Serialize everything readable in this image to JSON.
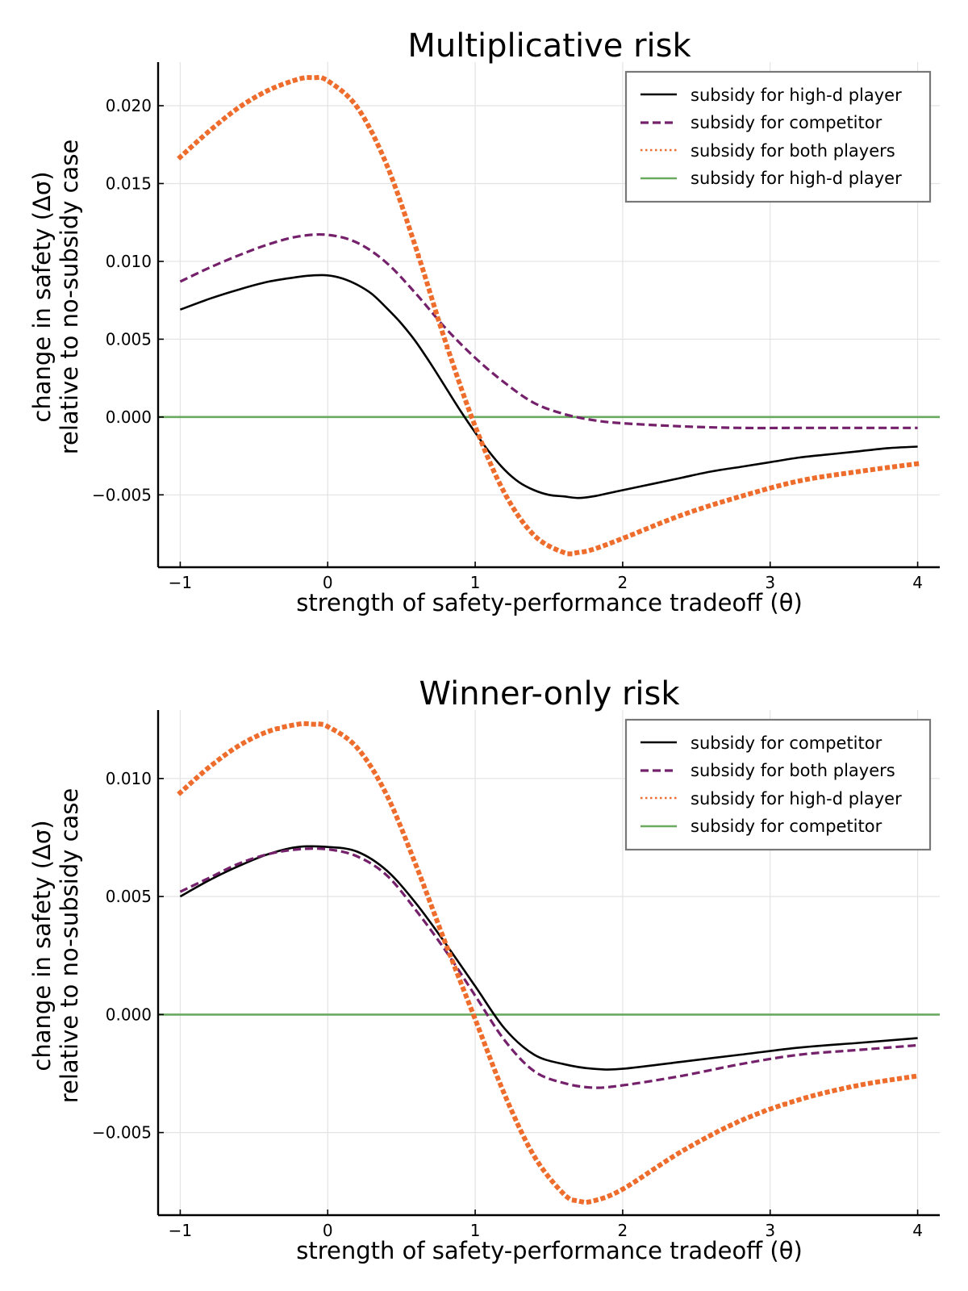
{
  "chart_data": [
    {
      "type": "line",
      "title": "Multiplicative risk",
      "xlabel": "strength of safety-performance tradeoff (θ)",
      "ylabel_line1": "change in safety (Δσ)",
      "ylabel_line2": "relative to no-subsidy case",
      "xlim": [
        -1.15,
        4.15
      ],
      "ylim": [
        -0.00965,
        0.0228
      ],
      "x_ticks": [
        -1,
        0,
        1,
        2,
        3,
        4
      ],
      "x_tick_labels": [
        "−1",
        "0",
        "1",
        "2",
        "3",
        "4"
      ],
      "y_ticks": [
        -0.005,
        0.0,
        0.005,
        0.01,
        0.015,
        0.02
      ],
      "y_tick_labels": [
        "−0.005",
        "0.000",
        "0.005",
        "0.010",
        "0.015",
        "0.020"
      ],
      "grid": true,
      "legend_position": "top-right",
      "series": [
        {
          "name": "subsidy for high-d player",
          "style": "solid",
          "color": "#000000",
          "x": [
            -1,
            -0.8,
            -0.6,
            -0.4,
            -0.2,
            -0.1,
            0,
            0.1,
            0.2,
            0.3,
            0.4,
            0.5,
            0.6,
            0.7,
            0.8,
            0.9,
            1.0,
            1.1,
            1.2,
            1.3,
            1.4,
            1.5,
            1.6,
            1.7,
            1.8,
            1.9,
            2.0,
            2.2,
            2.4,
            2.6,
            2.8,
            3.0,
            3.2,
            3.4,
            3.6,
            3.8,
            4.0
          ],
          "y": [
            0.0069,
            0.0076,
            0.0082,
            0.0087,
            0.009,
            0.0091,
            0.0091,
            0.0089,
            0.0085,
            0.0079,
            0.007,
            0.006,
            0.0048,
            0.0034,
            0.0019,
            0.0004,
            -0.001,
            -0.0023,
            -0.0034,
            -0.0042,
            -0.0047,
            -0.005,
            -0.0051,
            -0.0052,
            -0.0051,
            -0.0049,
            -0.0047,
            -0.0043,
            -0.0039,
            -0.0035,
            -0.0032,
            -0.0029,
            -0.0026,
            -0.0024,
            -0.0022,
            -0.002,
            -0.0019
          ]
        },
        {
          "name": "subsidy for competitor",
          "style": "dashed",
          "color": "#74206b",
          "x": [
            -1,
            -0.8,
            -0.6,
            -0.4,
            -0.2,
            0,
            0.2,
            0.4,
            0.6,
            0.8,
            1.0,
            1.2,
            1.4,
            1.6,
            1.8,
            2.0,
            2.4,
            2.8,
            3.2,
            3.6,
            4.0
          ],
          "y": [
            0.0087,
            0.0096,
            0.0104,
            0.0111,
            0.0116,
            0.0117,
            0.0112,
            0.0099,
            0.0079,
            0.0057,
            0.0038,
            0.0022,
            0.0009,
            0.0002,
            -0.0002,
            -0.0004,
            -0.0006,
            -0.0007,
            -0.0007,
            -0.0007,
            -0.0007
          ]
        },
        {
          "name": "subsidy for both players",
          "style": "dotted",
          "color": "#ee6c2c",
          "x": [
            -1,
            -0.8,
            -0.6,
            -0.4,
            -0.2,
            -0.1,
            0,
            0.2,
            0.4,
            0.6,
            0.8,
            1.0,
            1.2,
            1.4,
            1.6,
            1.7,
            1.8,
            2.0,
            2.4,
            2.8,
            3.2,
            3.6,
            4.0
          ],
          "y": [
            0.0167,
            0.0184,
            0.0199,
            0.021,
            0.0217,
            0.0218,
            0.0216,
            0.0199,
            0.0162,
            0.0108,
            0.0048,
            -0.0006,
            -0.0049,
            -0.0076,
            -0.0087,
            -0.0087,
            -0.0085,
            -0.0078,
            -0.0063,
            -0.0051,
            -0.0041,
            -0.0035,
            -0.003
          ]
        },
        {
          "name": "subsidy for high-d player",
          "style": "solid-green",
          "color": "#6aaa60",
          "x": [
            -1.15,
            4.15
          ],
          "y": [
            0.0,
            0.0
          ]
        }
      ]
    },
    {
      "type": "line",
      "title": "Winner-only risk",
      "xlabel": "strength of safety-performance tradeoff (θ)",
      "ylabel_line1": "change in safety (Δσ)",
      "ylabel_line2": "relative to no-subsidy case",
      "xlim": [
        -1.15,
        4.15
      ],
      "ylim": [
        -0.0085,
        0.0129
      ],
      "x_ticks": [
        -1,
        0,
        1,
        2,
        3,
        4
      ],
      "x_tick_labels": [
        "−1",
        "0",
        "1",
        "2",
        "3",
        "4"
      ],
      "y_ticks": [
        -0.005,
        0.0,
        0.005,
        0.01
      ],
      "y_tick_labels": [
        "−0.005",
        "0.000",
        "0.005",
        "0.010"
      ],
      "grid": true,
      "legend_position": "top-right",
      "series": [
        {
          "name": "subsidy for competitor",
          "style": "solid",
          "color": "#000000",
          "x": [
            -1,
            -0.8,
            -0.6,
            -0.4,
            -0.2,
            0,
            0.2,
            0.4,
            0.6,
            0.8,
            1.0,
            1.2,
            1.4,
            1.6,
            1.8,
            2.0,
            2.4,
            2.8,
            3.2,
            3.6,
            4.0
          ],
          "y": [
            0.005,
            0.0057,
            0.0063,
            0.0068,
            0.0071,
            0.0071,
            0.0069,
            0.0061,
            0.0047,
            0.003,
            0.0012,
            -0.0006,
            -0.0017,
            -0.0021,
            -0.0023,
            -0.0023,
            -0.002,
            -0.0017,
            -0.0014,
            -0.0012,
            -0.001
          ]
        },
        {
          "name": "subsidy for both players",
          "style": "dashed",
          "color": "#74206b",
          "x": [
            -1,
            -0.8,
            -0.6,
            -0.4,
            -0.2,
            0,
            0.2,
            0.4,
            0.6,
            0.8,
            1.0,
            1.2,
            1.4,
            1.6,
            1.8,
            2.0,
            2.4,
            2.8,
            3.2,
            3.6,
            4.0
          ],
          "y": [
            0.0052,
            0.0058,
            0.0064,
            0.0068,
            0.007,
            0.007,
            0.0067,
            0.0059,
            0.0044,
            0.0027,
            0.0008,
            -0.0011,
            -0.0024,
            -0.0029,
            -0.0031,
            -0.003,
            -0.0026,
            -0.0021,
            -0.0017,
            -0.0015,
            -0.0013
          ]
        },
        {
          "name": "subsidy for high-d player",
          "style": "dotted",
          "color": "#ee6c2c",
          "x": [
            -1,
            -0.8,
            -0.6,
            -0.4,
            -0.2,
            -0.1,
            0,
            0.2,
            0.4,
            0.6,
            0.8,
            1.0,
            1.2,
            1.4,
            1.6,
            1.7,
            1.8,
            2.0,
            2.4,
            2.8,
            3.2,
            3.6,
            4.0
          ],
          "y": [
            0.0094,
            0.0105,
            0.0114,
            0.012,
            0.0123,
            0.0123,
            0.0122,
            0.0113,
            0.0093,
            0.0063,
            0.003,
            -0.0002,
            -0.0034,
            -0.006,
            -0.0076,
            -0.0079,
            -0.0079,
            -0.0074,
            -0.0058,
            -0.0045,
            -0.0036,
            -0.003,
            -0.0026
          ]
        },
        {
          "name": "subsidy for competitor",
          "style": "solid-green",
          "color": "#6aaa60",
          "x": [
            -1.15,
            4.15
          ],
          "y": [
            0.0,
            0.0
          ]
        }
      ]
    }
  ]
}
